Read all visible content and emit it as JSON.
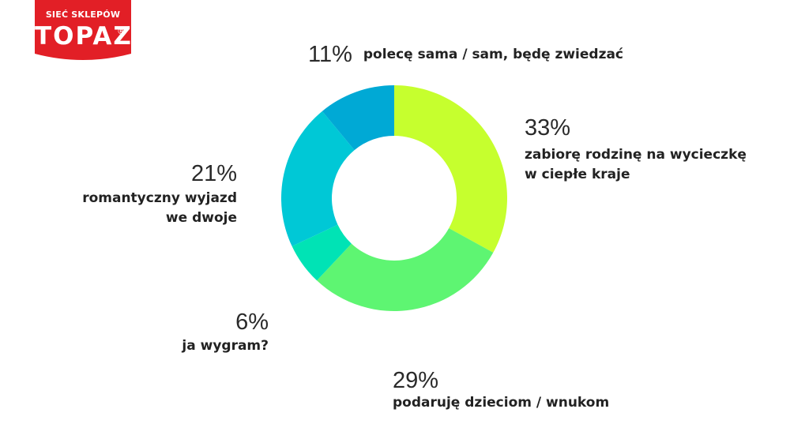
{
  "brand": {
    "top": "SIEĆ SKLEPÓW",
    "name": "TOPAZ",
    "reg": "®",
    "color": "#e21f26"
  },
  "chart_data": {
    "type": "pie",
    "donut": true,
    "categories": [
      "zabiorę rodzinę na wycieczkę w ciepłe kraje",
      "podaruję dzieciom / wnukom",
      "ja wygram?",
      "romantyczny wyjazd we dwoje",
      "polecę sama / sam, będę zwiedzać"
    ],
    "values": [
      33,
      29,
      6,
      21,
      11
    ],
    "colors": [
      "#c6ff2e",
      "#5ef572",
      "#00e3b5",
      "#00c8d6",
      "#00a9d5"
    ],
    "labels": [
      {
        "pct": "33%",
        "lines": [
          "zabiorę rodzinę na wycieczkę",
          "w ciepłe kraje"
        ]
      },
      {
        "pct": "29%",
        "lines": [
          "podaruję dzieciom / wnukom"
        ]
      },
      {
        "pct": "6%",
        "lines": [
          "ja wygram?"
        ]
      },
      {
        "pct": "21%",
        "lines": [
          "romantyczny wyjazd",
          "we dwoje"
        ]
      },
      {
        "pct": "11%",
        "lines": [
          "polecę sama / sam, będę zwiedzać"
        ]
      }
    ]
  }
}
